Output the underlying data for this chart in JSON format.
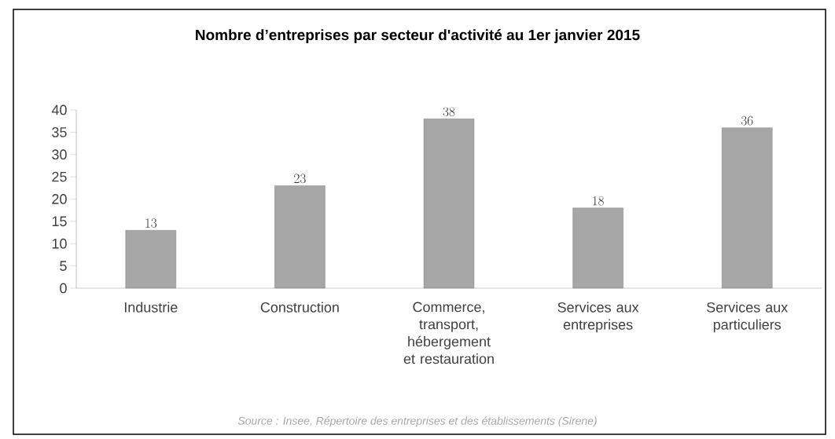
{
  "chart_data": {
    "type": "bar",
    "title": "Nombre d’entreprises par secteur d'activité au 1er janvier 2015",
    "categories": [
      "Industrie",
      "Construction",
      "Commerce, transport, hébergement et restauration",
      "Services aux entreprises",
      "Services aux particuliers"
    ],
    "values": [
      13,
      23,
      38,
      18,
      36
    ],
    "color": "#a6a6a6",
    "ylim": [
      0,
      40
    ],
    "yticks": [
      0,
      5,
      10,
      15,
      20,
      25,
      30,
      35,
      40
    ],
    "grid": false,
    "data_labels": true,
    "annotations": [
      "Source : Insee, Répertoire des entreprises et des établissements (Sirene)"
    ]
  }
}
